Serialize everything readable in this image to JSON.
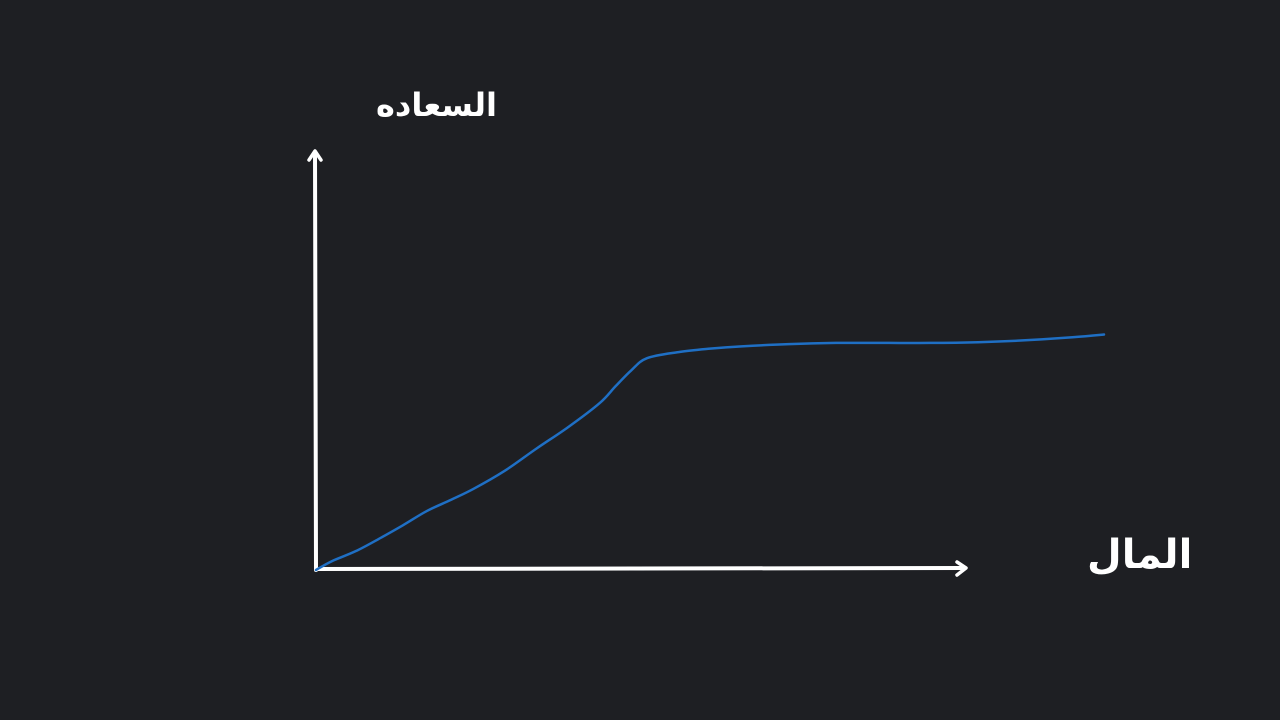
{
  "colors": {
    "background": "#1e1f23",
    "axis": "#ffffff",
    "curve": "#1f6fc4"
  },
  "chart_data": {
    "type": "line",
    "xlabel": "المال",
    "ylabel": "السعاده",
    "xlim": [
      0,
      100
    ],
    "ylim": [
      0,
      100
    ],
    "grid": false,
    "series": [
      {
        "x": [
          0,
          2,
          5,
          8,
          11,
          14,
          17,
          20,
          24,
          28,
          32,
          36,
          38,
          40,
          42,
          46,
          50,
          54,
          60,
          66,
          72,
          78,
          84,
          90,
          96,
          100
        ],
        "y": [
          0,
          2.3,
          4.9,
          8.2,
          11.7,
          15.4,
          18.3,
          21.3,
          26.1,
          31.9,
          37.5,
          43.8,
          48.2,
          52.4,
          55.6,
          57.2,
          58.1,
          58.7,
          59.3,
          59.6,
          59.6,
          59.6,
          59.8,
          60.3,
          61.1,
          61.8
        ]
      }
    ]
  }
}
